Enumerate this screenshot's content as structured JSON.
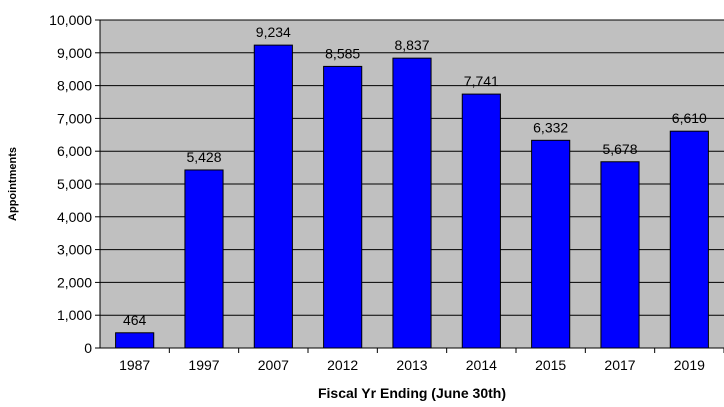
{
  "chart_data": {
    "type": "bar",
    "title": "",
    "xlabel": "Fiscal Yr Ending (June 30th)",
    "ylabel": "Appointments",
    "categories": [
      "1987",
      "1997",
      "2007",
      "2012",
      "2013",
      "2014",
      "2015",
      "2017",
      "2019"
    ],
    "values": [
      464,
      5428,
      9234,
      8585,
      8837,
      7741,
      6332,
      5678,
      6610
    ],
    "value_labels": [
      "464",
      "5,428",
      "9,234",
      "8,585",
      "8,837",
      "7,741",
      "6,332",
      "5,678",
      "6,610"
    ],
    "ylim": [
      0,
      10000
    ],
    "yticks": [
      0,
      1000,
      2000,
      3000,
      4000,
      5000,
      6000,
      7000,
      8000,
      9000,
      10000
    ],
    "ytick_labels": [
      "0",
      "1,000",
      "2,000",
      "3,000",
      "4,000",
      "5,000",
      "6,000",
      "7,000",
      "8,000",
      "9,000",
      "10,000"
    ],
    "grid": true,
    "legend": "none",
    "colors": {
      "bar_fill": "#0000ff",
      "bar_stroke": "#000000",
      "plot_background": "#c0c0c0",
      "gridline": "#000000"
    }
  }
}
